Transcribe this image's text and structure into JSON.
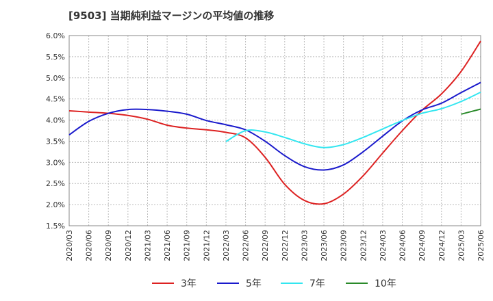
{
  "chart_data": {
    "type": "line",
    "title": "[9503]  当期純利益マージンの平均値の推移",
    "xlabel": "",
    "ylabel": "",
    "ylim": [
      1.5,
      6.0
    ],
    "x_tick_labels": [
      "2020/03",
      "2020/06",
      "2020/09",
      "2020/12",
      "2021/03",
      "2021/06",
      "2021/09",
      "2021/12",
      "2022/03",
      "2022/06",
      "2022/09",
      "2022/12",
      "2023/03",
      "2023/06",
      "2023/09",
      "2023/12",
      "2024/03",
      "2024/06",
      "2024/09",
      "2024/12",
      "2025/03",
      "2025/06"
    ],
    "y_tick_labels": [
      "1.5%",
      "2.0%",
      "2.5%",
      "3.0%",
      "3.5%",
      "4.0%",
      "4.5%",
      "5.0%",
      "5.5%",
      "6.0%"
    ],
    "y_ticks": [
      1.5,
      2.0,
      2.5,
      3.0,
      3.5,
      4.0,
      4.5,
      5.0,
      5.5,
      6.0
    ],
    "grid": true,
    "legend_position": "bottom",
    "series": [
      {
        "name": "3年",
        "color": "#dd2222",
        "values": [
          4.22,
          4.19,
          4.16,
          4.11,
          4.02,
          3.88,
          3.81,
          3.77,
          3.71,
          3.58,
          3.12,
          2.48,
          2.1,
          2.02,
          2.25,
          2.68,
          3.22,
          3.75,
          4.23,
          4.62,
          5.15,
          5.87
        ]
      },
      {
        "name": "5年",
        "color": "#1a1acc",
        "values": [
          3.65,
          3.97,
          4.16,
          4.25,
          4.25,
          4.21,
          4.14,
          3.99,
          3.89,
          3.77,
          3.5,
          3.16,
          2.9,
          2.82,
          2.94,
          3.25,
          3.62,
          3.98,
          4.24,
          4.4,
          4.65,
          4.89
        ]
      },
      {
        "name": "7年",
        "color": "#33e6f0",
        "values": [
          null,
          null,
          null,
          null,
          null,
          null,
          null,
          null,
          3.49,
          3.75,
          3.72,
          3.59,
          3.44,
          3.35,
          3.42,
          3.59,
          3.79,
          3.99,
          4.16,
          4.27,
          4.44,
          4.66
        ]
      },
      {
        "name": "10年",
        "color": "#2a8a2a",
        "values": [
          null,
          null,
          null,
          null,
          null,
          null,
          null,
          null,
          null,
          null,
          null,
          null,
          null,
          null,
          null,
          null,
          null,
          null,
          null,
          null,
          4.14,
          4.26
        ]
      }
    ]
  }
}
